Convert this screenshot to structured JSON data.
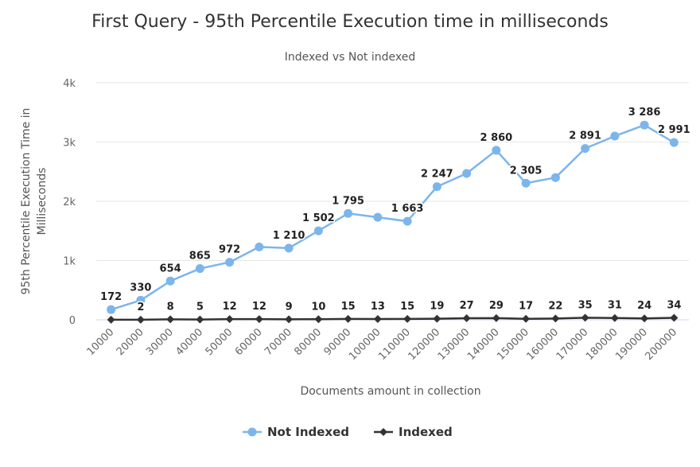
{
  "chart_data": {
    "type": "line",
    "title": "First Query - 95th Percentile Execution time in milliseconds",
    "subtitle": "Indexed vs Not indexed",
    "xlabel": "Documents amount in collection",
    "ylabel": "95th Percentile Execution Time in Milliseconds",
    "ylim": [
      0,
      4000
    ],
    "y_ticks": [
      "0",
      "1k",
      "2k",
      "3k",
      "4k"
    ],
    "y_tick_values": [
      0,
      1000,
      2000,
      3000,
      4000
    ],
    "grid": true,
    "legend_position": "bottom-center",
    "categories": [
      "10000",
      "20000",
      "30000",
      "40000",
      "50000",
      "60000",
      "70000",
      "80000",
      "90000",
      "100000",
      "110000",
      "120000",
      "130000",
      "140000",
      "150000",
      "160000",
      "170000",
      "180000",
      "190000",
      "200000"
    ],
    "series": [
      {
        "name": "Not Indexed",
        "color": "#7cb5ec",
        "marker": "circle",
        "values": [
          172,
          330,
          654,
          865,
          972,
          1230,
          1210,
          1502,
          1795,
          1730,
          1663,
          2247,
          2470,
          2860,
          2305,
          2400,
          2891,
          3100,
          3286,
          2991
        ],
        "labels": [
          "172",
          "330",
          "654",
          "865",
          "972",
          "",
          "1 210",
          "1 502",
          "1 795",
          "",
          "1 663",
          "2 247",
          "",
          "2 860",
          "2 305",
          "",
          "2 891",
          "",
          "3 286",
          "2 991"
        ]
      },
      {
        "name": "Indexed",
        "color": "#333333",
        "marker": "diamond",
        "values": [
          2,
          2,
          8,
          5,
          12,
          12,
          9,
          10,
          15,
          13,
          15,
          19,
          27,
          29,
          17,
          22,
          35,
          31,
          24,
          34
        ],
        "labels": [
          "",
          "2",
          "8",
          "5",
          "12",
          "12",
          "9",
          "10",
          "15",
          "13",
          "15",
          "19",
          "27",
          "29",
          "17",
          "22",
          "35",
          "31",
          "24",
          "34"
        ]
      }
    ]
  }
}
